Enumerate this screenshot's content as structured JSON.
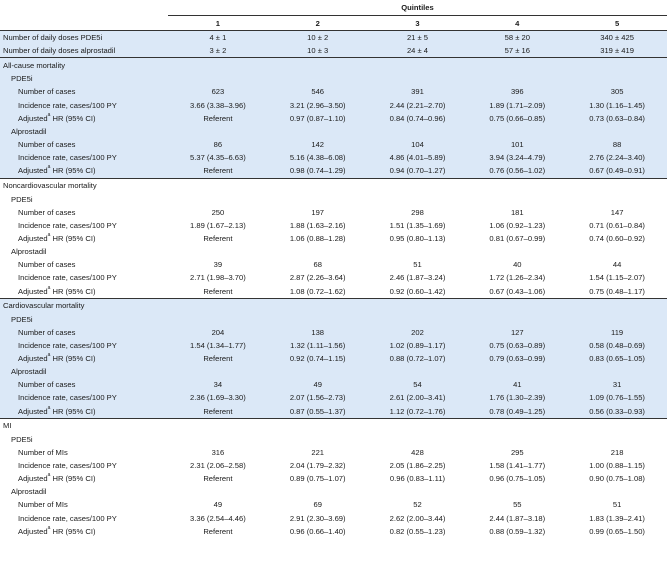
{
  "header": {
    "quintiles_label": "Quintiles",
    "quintile_numbers": [
      "1",
      "2",
      "3",
      "4",
      "5"
    ]
  },
  "dose_rows": [
    {
      "label": "Number of daily doses PDE5i",
      "values": [
        "4 ± 1",
        "10 ± 2",
        "21 ± 5",
        "58 ± 20",
        "340 ± 425"
      ]
    },
    {
      "label": "Number of daily doses alprostadil",
      "values": [
        "3 ± 2",
        "10 ± 3",
        "24 ± 4",
        "57 ± 16",
        "319 ± 419"
      ]
    }
  ],
  "sections": [
    {
      "title": "All-cause mortality",
      "groups": [
        {
          "name": "PDE5i",
          "rows": [
            {
              "label": "Number of cases",
              "values": [
                "623",
                "546",
                "391",
                "396",
                "305"
              ]
            },
            {
              "label": "Incidence rate, cases/100 PY",
              "values": [
                "3.66 (3.38–3.96)",
                "3.21 (2.96–3.50)",
                "2.44 (2.21–2.70)",
                "1.89 (1.71–2.09)",
                "1.30 (1.16–1.45)"
              ]
            },
            {
              "label": "Adjusted",
              "sup": "a",
              "label_rest": " HR (95% CI)",
              "values": [
                "Referent",
                "0.97 (0.87–1.10)",
                "0.84 (0.74–0.96)",
                "0.75 (0.66–0.85)",
                "0.73 (0.63–0.84)"
              ]
            }
          ]
        },
        {
          "name": "Alprostadil",
          "rows": [
            {
              "label": "Number of cases",
              "values": [
                "86",
                "142",
                "104",
                "101",
                "88"
              ]
            },
            {
              "label": "Incidence rate, cases/100 PY",
              "values": [
                "5.37 (4.35–6.63)",
                "5.16 (4.38–6.08)",
                "4.86 (4.01–5.89)",
                "3.94 (3.24–4.79)",
                "2.76 (2.24–3.40)"
              ]
            },
            {
              "label": "Adjusted",
              "sup": "a",
              "label_rest": " HR (95% CI)",
              "values": [
                "Referent",
                "0.98 (0.74–1.29)",
                "0.94 (0.70–1.27)",
                "0.76 (0.56–1.02)",
                "0.67 (0.49–0.91)"
              ]
            }
          ]
        }
      ]
    },
    {
      "title": "Noncardiovascular mortality",
      "groups": [
        {
          "name": "PDE5i",
          "rows": [
            {
              "label": "Number of cases",
              "values": [
                "250",
                "197",
                "298",
                "181",
                "147"
              ]
            },
            {
              "label": "Incidence rate, cases/100 PY",
              "values": [
                "1.89 (1.67–2.13)",
                "1.88 (1.63–2.16)",
                "1.51 (1.35–1.69)",
                "1.06 (0.92–1.23)",
                "0.71 (0.61–0.84)"
              ]
            },
            {
              "label": "Adjusted",
              "sup": "a",
              "label_rest": " HR (95% CI)",
              "values": [
                "Referent",
                "1.06 (0.88–1.28)",
                "0.95 (0.80–1.13)",
                "0.81 (0.67–0.99)",
                "0.74 (0.60–0.92)"
              ]
            }
          ]
        },
        {
          "name": "Alprostadil",
          "rows": [
            {
              "label": "Number of cases",
              "values": [
                "39",
                "68",
                "51",
                "40",
                "44"
              ]
            },
            {
              "label": "Incidence rate, cases/100 PY",
              "values": [
                "2.71 (1.98–3.70)",
                "2.87 (2.26–3.64)",
                "2.46 (1.87–3.24)",
                "1.72 (1.26–2.34)",
                "1.54 (1.15–2.07)"
              ]
            },
            {
              "label": "Adjusted",
              "sup": "a",
              "label_rest": " HR (95% CI)",
              "values": [
                "Referent",
                "1.08 (0.72–1.62)",
                "0.92 (0.60–1.42)",
                "0.67 (0.43–1.06)",
                "0.75 (0.48–1.17)"
              ]
            }
          ]
        }
      ]
    },
    {
      "title": "Cardiovascular mortality",
      "groups": [
        {
          "name": "PDE5i",
          "rows": [
            {
              "label": "Number of cases",
              "values": [
                "204",
                "138",
                "202",
                "127",
                "119"
              ]
            },
            {
              "label": "Incidence rate, cases/100 PY",
              "values": [
                "1.54 (1.34–1.77)",
                "1.32 (1.11–1.56)",
                "1.02 (0.89–1.17)",
                "0.75 (0.63–0.89)",
                "0.58 (0.48–0.69)"
              ]
            },
            {
              "label": "Adjusted",
              "sup": "a",
              "label_rest": " HR (95% CI)",
              "values": [
                "Referent",
                "0.92 (0.74–1.15)",
                "0.88 (0.72–1.07)",
                "0.79 (0.63–0.99)",
                "0.83 (0.65–1.05)"
              ]
            }
          ]
        },
        {
          "name": "Alprostadil",
          "rows": [
            {
              "label": "Number of cases",
              "values": [
                "34",
                "49",
                "54",
                "41",
                "31"
              ]
            },
            {
              "label": "Incidence rate, cases/100 PY",
              "values": [
                "2.36 (1.69–3.30)",
                "2.07 (1.56–2.73)",
                "2.61 (2.00–3.41)",
                "1.76 (1.30–2.39)",
                "1.09 (0.76–1.55)"
              ]
            },
            {
              "label": "Adjusted",
              "sup": "a",
              "label_rest": " HR (95% CI)",
              "values": [
                "Referent",
                "0.87 (0.55–1.37)",
                "1.12 (0.72–1.76)",
                "0.78 (0.49–1.25)",
                "0.56 (0.33–0.93)"
              ]
            }
          ]
        }
      ]
    },
    {
      "title": "MI",
      "groups": [
        {
          "name": "PDE5i",
          "rows": [
            {
              "label": "Number of MIs",
              "values": [
                "316",
                "221",
                "428",
                "295",
                "218"
              ]
            },
            {
              "label": "Incidence rate, cases/100 PY",
              "values": [
                "2.31 (2.06–2.58)",
                "2.04 (1.79–2.32)",
                "2.05 (1.86–2.25)",
                "1.58 (1.41–1.77)",
                "1.00 (0.88–1.15)"
              ]
            },
            {
              "label": "Adjusted",
              "sup": "a",
              "label_rest": " HR (95% CI)",
              "values": [
                "Referent",
                "0.89 (0.75–1.07)",
                "0.96 (0.83–1.11)",
                "0.96 (0.75–1.05)",
                "0.90 (0.75–1.08)"
              ]
            }
          ]
        },
        {
          "name": "Alprostadil",
          "rows": [
            {
              "label": "Number of MIs",
              "values": [
                "49",
                "69",
                "52",
                "55",
                "51"
              ]
            },
            {
              "label": "Incidence rate, cases/100 PY",
              "values": [
                "3.36 (2.54–4.46)",
                "2.91 (2.30–3.69)",
                "2.62 (2.00–3.44)",
                "2.44 (1.87–3.18)",
                "1.83 (1.39–2.41)"
              ]
            },
            {
              "label": "Adjusted",
              "sup": "a",
              "label_rest": " HR (95% CI)",
              "values": [
                "Referent",
                "0.96 (0.66–1.40)",
                "0.82 (0.55–1.23)",
                "0.88 (0.59–1.32)",
                "0.99 (0.65–1.50)"
              ]
            }
          ]
        }
      ]
    }
  ],
  "colors": {
    "shade": "#dbe8f7",
    "rule": "#333333"
  }
}
